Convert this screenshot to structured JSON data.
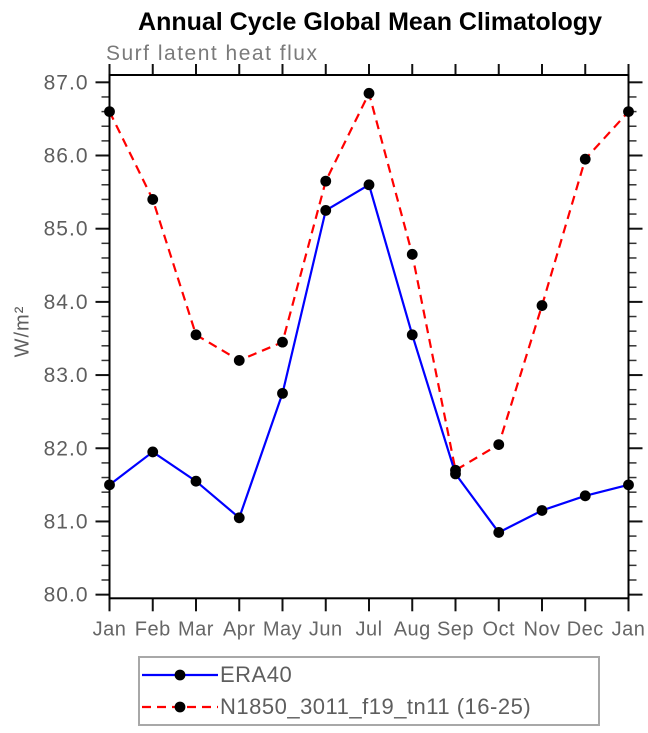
{
  "chart_data": {
    "type": "line",
    "title": "Annual Cycle Global Mean Climatology",
    "subtitle": "Surf latent heat flux",
    "ylabel": "W/m²",
    "xlabel": "",
    "categories": [
      "Jan",
      "Feb",
      "Mar",
      "Apr",
      "May",
      "Jun",
      "Jul",
      "Aug",
      "Sep",
      "Oct",
      "Nov",
      "Dec",
      "Jan"
    ],
    "ylim": [
      79.95,
      87.1
    ],
    "yticks": [
      80,
      81,
      82,
      83,
      84,
      85,
      86,
      87
    ],
    "ytick_labels": [
      "80.0",
      "81.0",
      "82.0",
      "83.0",
      "84.0",
      "85.0",
      "86.0",
      "87.0"
    ],
    "minor_tick_step": 0.2,
    "grid": false,
    "legend_position": "bottom-left",
    "marker": "filled-black-circle",
    "series": [
      {
        "name": "ERA40",
        "color": "#0000ff",
        "style": "solid",
        "values": [
          81.5,
          81.95,
          81.55,
          81.05,
          82.75,
          85.25,
          85.6,
          83.55,
          81.65,
          80.85,
          81.15,
          81.35,
          81.5
        ]
      },
      {
        "name": "N1850_3011_f19_tn11 (16-25)",
        "color": "#ff0000",
        "style": "dashed",
        "values": [
          86.6,
          85.4,
          83.55,
          83.2,
          83.45,
          85.65,
          86.85,
          84.65,
          81.7,
          82.05,
          83.95,
          85.95,
          86.6
        ]
      }
    ],
    "colors": {
      "frame": "#000000",
      "major_tick": "#111111",
      "minor_tick": "#333333",
      "marker": "#000000",
      "tick_label": "#5e5e5e",
      "subtitle_text": "#7a7a7a",
      "legend_border": "#a8a8a8"
    }
  }
}
